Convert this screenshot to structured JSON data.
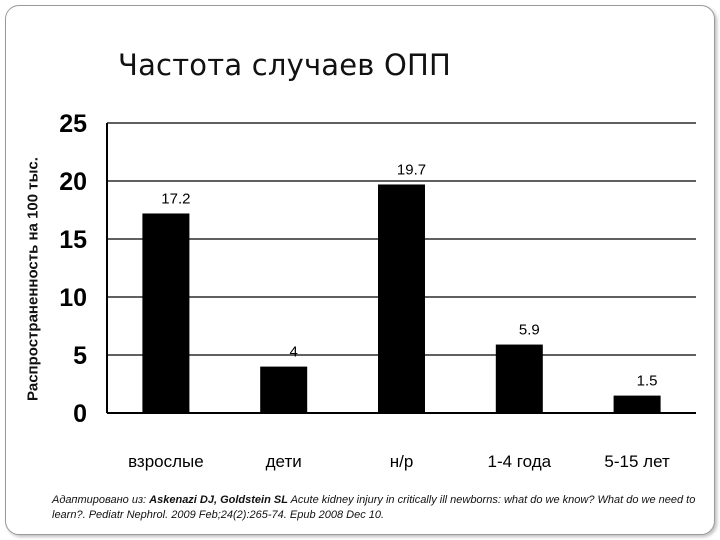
{
  "chart_data": {
    "type": "bar",
    "title": "Частота случаев ОПП",
    "ylabel": "Распространенность на 100 тыс.",
    "xlabel": "",
    "categories": [
      "взрослые",
      "дети",
      "н/р",
      "1-4 года",
      "5-15 лет"
    ],
    "values": [
      17.2,
      4,
      19.7,
      5.9,
      1.5
    ],
    "value_labels": [
      "17.2",
      "4",
      "19.7",
      "5.9",
      "1.5"
    ],
    "ylim": [
      0,
      25
    ],
    "yticks": [
      0,
      5,
      10,
      15,
      20,
      25
    ],
    "grid": true,
    "bar_color": "#000000",
    "legend": "none"
  },
  "citation": {
    "prefix": "Адаптировано из: ",
    "authors": "Askenazi DJ, Goldstein SL",
    "text": " Acute kidney injury in critically ill newborns: what do we know? What do we need to learn?. Pediatr Nephrol. 2009 Feb;24(2):265-74. Epub 2008 Dec 10."
  }
}
